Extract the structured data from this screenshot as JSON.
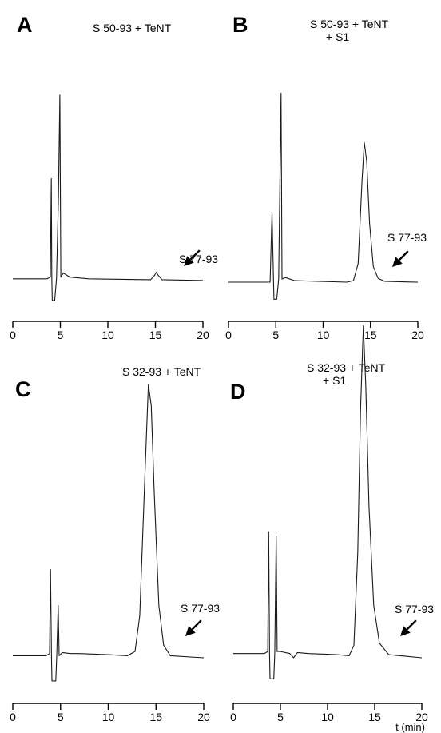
{
  "chart_data": [
    {
      "type": "line",
      "panel": "A",
      "title": "S 50-93  +  TeNT",
      "title_line2": "",
      "xlabel": "",
      "x_ticks": [
        "0",
        "5",
        "10",
        "15",
        "20"
      ],
      "xlim": [
        0,
        20
      ],
      "annotation": "S 77-93",
      "annotation_time": 17.4,
      "series": [
        {
          "values": [
            [
              0,
              0.02
            ],
            [
              3.6,
              0.02
            ],
            [
              3.95,
              0.03
            ],
            [
              4.05,
              0.62
            ],
            [
              4.1,
              0.03
            ],
            [
              4.15,
              -0.11
            ],
            [
              4.4,
              -0.11
            ],
            [
              4.6,
              0.02
            ],
            [
              4.8,
              0.5
            ],
            [
              4.95,
              1.12
            ],
            [
              5.05,
              0.03
            ],
            [
              5.3,
              0.055
            ],
            [
              6,
              0.03
            ],
            [
              8,
              0.02
            ],
            [
              14.5,
              0.015
            ],
            [
              14.9,
              0.04
            ],
            [
              15.1,
              0.06
            ],
            [
              15.3,
              0.04
            ],
            [
              15.7,
              0.015
            ],
            [
              20,
              0.01
            ]
          ]
        }
      ]
    },
    {
      "type": "line",
      "panel": "B",
      "title": "S 50-93  +  TeNT",
      "title_line2": "+ S1",
      "xlabel": "",
      "x_ticks": [
        "0",
        "5",
        "10",
        "15",
        "20"
      ],
      "xlim": [
        0,
        20
      ],
      "annotation": "S 77-93",
      "annotation_time": 17.4,
      "series": [
        {
          "values": [
            [
              0,
              0.0
            ],
            [
              4.4,
              0.0
            ],
            [
              4.6,
              0.45
            ],
            [
              4.75,
              0.02
            ],
            [
              4.8,
              -0.11
            ],
            [
              5.1,
              -0.11
            ],
            [
              5.3,
              0.02
            ],
            [
              5.55,
              1.22
            ],
            [
              5.65,
              0.02
            ],
            [
              6,
              0.03
            ],
            [
              7,
              0.01
            ],
            [
              12.5,
              0.0
            ],
            [
              13.2,
              0.01
            ],
            [
              13.7,
              0.12
            ],
            [
              14.1,
              0.65
            ],
            [
              14.35,
              0.9
            ],
            [
              14.6,
              0.78
            ],
            [
              14.9,
              0.38
            ],
            [
              15.3,
              0.1
            ],
            [
              15.8,
              0.025
            ],
            [
              16.5,
              0.005
            ],
            [
              20,
              0.0
            ]
          ]
        }
      ]
    },
    {
      "type": "line",
      "panel": "C",
      "title": "S 32-93  +  TeNT",
      "title_line2": "",
      "xlabel": "",
      "x_ticks": [
        "0",
        "5",
        "10",
        "15",
        "20"
      ],
      "xlim": [
        0,
        20
      ],
      "annotation": "S 77-93",
      "annotation_time": 18.4,
      "series": [
        {
          "values": [
            [
              0,
              0.01
            ],
            [
              3.5,
              0.01
            ],
            [
              3.85,
              0.02
            ],
            [
              3.95,
              0.42
            ],
            [
              4.05,
              0.01
            ],
            [
              4.1,
              -0.11
            ],
            [
              4.5,
              -0.11
            ],
            [
              4.6,
              0.01
            ],
            [
              4.75,
              0.25
            ],
            [
              4.85,
              0.01
            ],
            [
              5.2,
              0.025
            ],
            [
              6,
              0.02
            ],
            [
              7,
              0.02
            ],
            [
              10,
              0.015
            ],
            [
              12,
              0.01
            ],
            [
              12.8,
              0.03
            ],
            [
              13.3,
              0.2
            ],
            [
              13.8,
              0.82
            ],
            [
              14.2,
              1.3
            ],
            [
              14.5,
              1.2
            ],
            [
              14.8,
              0.8
            ],
            [
              15.3,
              0.25
            ],
            [
              15.8,
              0.06
            ],
            [
              16.5,
              0.01
            ],
            [
              20,
              0.0
            ]
          ]
        }
      ]
    },
    {
      "type": "line",
      "panel": "D",
      "title": "S 32-93  +  TeNT",
      "title_line2": "+ S1",
      "xlabel": "t (min)",
      "x_ticks": [
        "0",
        "5",
        "10",
        "15",
        "20"
      ],
      "xlim": [
        0,
        20
      ],
      "annotation": "S 77-93",
      "annotation_time": 18.2,
      "series": [
        {
          "values": [
            [
              0,
              0.02
            ],
            [
              3.3,
              0.02
            ],
            [
              3.65,
              0.03
            ],
            [
              3.75,
              0.6
            ],
            [
              3.85,
              0.02
            ],
            [
              3.9,
              -0.1
            ],
            [
              4.3,
              -0.1
            ],
            [
              4.4,
              0.02
            ],
            [
              4.55,
              0.58
            ],
            [
              4.65,
              0.03
            ],
            [
              5,
              0.03
            ],
            [
              6,
              0.02
            ],
            [
              6.4,
              0.0
            ],
            [
              6.8,
              0.025
            ],
            [
              8,
              0.02
            ],
            [
              11,
              0.015
            ],
            [
              12.3,
              0.01
            ],
            [
              12.8,
              0.06
            ],
            [
              13.2,
              0.5
            ],
            [
              13.5,
              1.18
            ],
            [
              13.8,
              1.58
            ],
            [
              14.05,
              1.3
            ],
            [
              14.4,
              0.72
            ],
            [
              14.9,
              0.25
            ],
            [
              15.5,
              0.07
            ],
            [
              16.5,
              0.015
            ],
            [
              20,
              0.0
            ]
          ]
        }
      ]
    }
  ]
}
